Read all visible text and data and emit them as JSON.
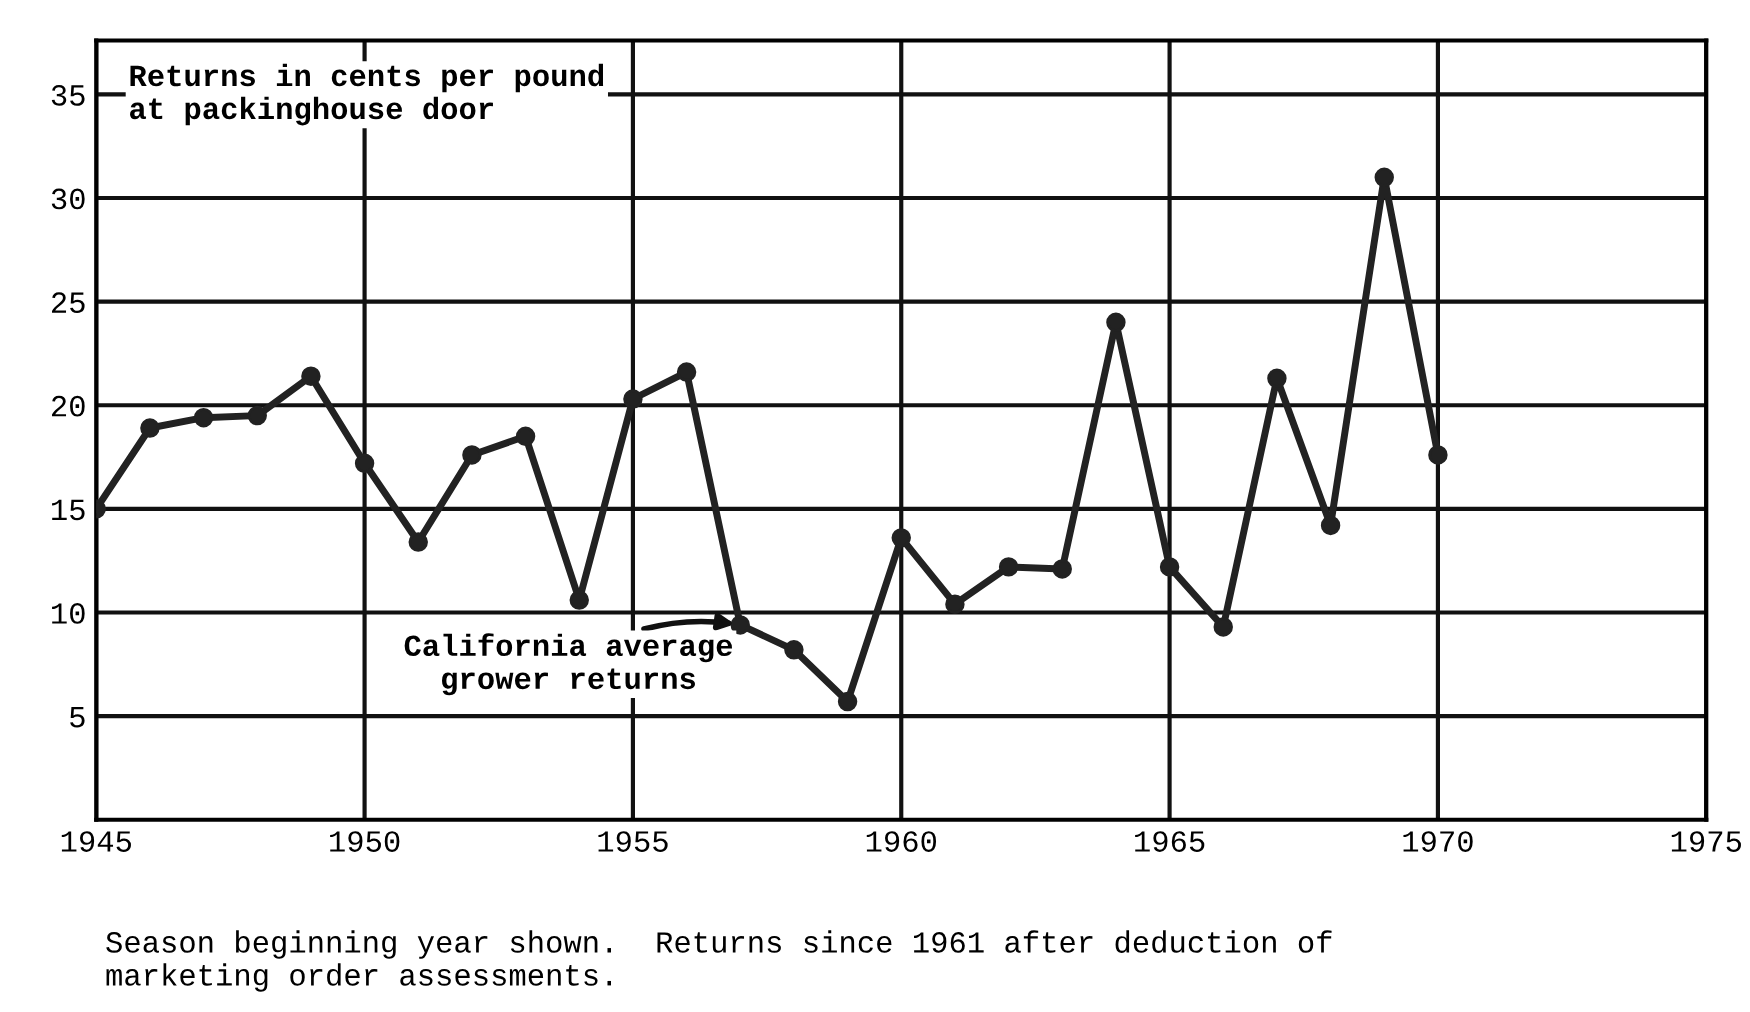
{
  "chart_data": {
    "type": "line",
    "x": [
      1945,
      1946,
      1947,
      1948,
      1949,
      1950,
      1951,
      1952,
      1953,
      1954,
      1955,
      1956,
      1957,
      1958,
      1959,
      1960,
      1961,
      1962,
      1963,
      1964,
      1965,
      1966,
      1967,
      1968,
      1969,
      1970
    ],
    "series": [
      {
        "color": "#222222",
        "values": [
          15.0,
          18.9,
          19.4,
          19.5,
          21.4,
          17.2,
          13.4,
          17.6,
          18.5,
          10.6,
          20.3,
          21.6,
          9.4,
          8.2,
          5.7,
          13.6,
          10.4,
          12.2,
          12.1,
          24.0,
          12.2,
          9.3,
          21.3,
          14.2,
          31.0,
          17.6
        ]
      }
    ],
    "marker": "circle",
    "line_style": "solid",
    "xlim": [
      1945,
      1975
    ],
    "xticks": [
      1945,
      1950,
      1955,
      1960,
      1965,
      1970,
      1975
    ],
    "ylim": [
      0,
      37.6
    ],
    "yticks": [
      5,
      10,
      15,
      20,
      25,
      30,
      35
    ],
    "grid": true,
    "annotations": [
      "Returns in cents per pound\nat packinghouse door",
      {
        "text": "California average\ngrower returns",
        "x": 1957,
        "y": 9.4
      },
      "Season beginning year shown.  Returns since 1961 after deduction of\nmarketing order assessments."
    ]
  }
}
